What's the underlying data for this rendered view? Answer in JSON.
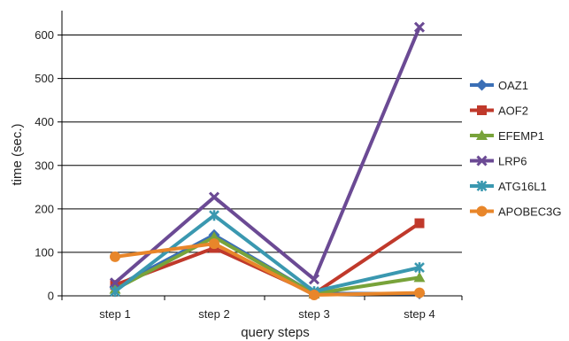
{
  "chart_data": {
    "type": "line",
    "title": "",
    "xlabel": "query steps",
    "ylabel": "time (sec.)",
    "categories": [
      "step 1",
      "step 2",
      "step 3",
      "step 4"
    ],
    "ylim": [
      0,
      650
    ],
    "yticks": [
      0,
      100,
      200,
      300,
      400,
      500,
      600
    ],
    "grid": "horizontal",
    "legend_position": "right",
    "series": [
      {
        "name": "OAZ1",
        "color": "#3b6fb6",
        "marker": "diamond",
        "values": [
          20,
          140,
          5,
          5
        ]
      },
      {
        "name": "AOF2",
        "color": "#c0392b",
        "marker": "square",
        "values": [
          25,
          110,
          5,
          167
        ]
      },
      {
        "name": "EFEMP1",
        "color": "#78a33a",
        "marker": "triangle",
        "values": [
          15,
          135,
          5,
          42
        ]
      },
      {
        "name": "LRP6",
        "color": "#6b4a94",
        "marker": "x",
        "values": [
          30,
          227,
          38,
          618
        ]
      },
      {
        "name": "ATG16L1",
        "color": "#3a98b0",
        "marker": "star",
        "values": [
          10,
          185,
          10,
          65
        ]
      },
      {
        "name": "APOBEC3G",
        "color": "#e8862a",
        "marker": "circle",
        "values": [
          90,
          120,
          2,
          7
        ]
      }
    ]
  }
}
